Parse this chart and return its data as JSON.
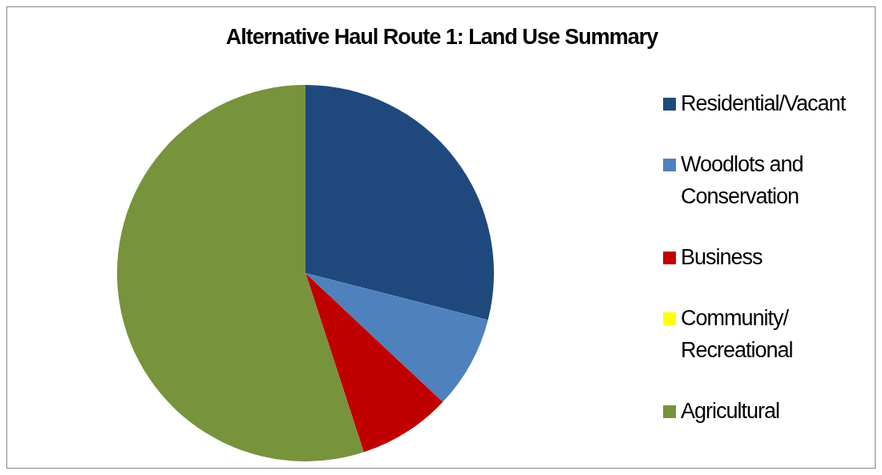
{
  "chart_data": {
    "type": "pie",
    "title": "Alternative Haul Route 1: Land Use Summary",
    "categories": [
      "Residential/Vacant",
      "Woodlots and Conservation",
      "Business",
      "Community/ Recreational",
      "Agricultural"
    ],
    "values": [
      29,
      8,
      8,
      0,
      55
    ],
    "colors": [
      "#1f497d",
      "#4f81bd",
      "#c00000",
      "#ffff00",
      "#77933c"
    ],
    "legend": "right"
  }
}
